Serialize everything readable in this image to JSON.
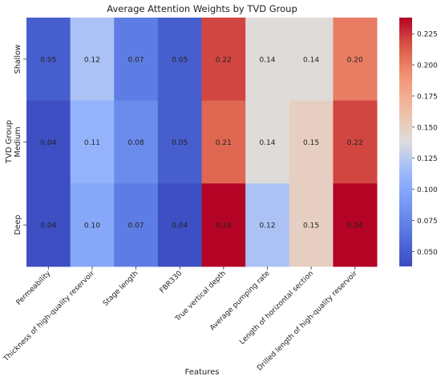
{
  "chart_data": {
    "type": "heatmap",
    "title": "Average Attention Weights by TVD Group",
    "xlabel": "Features",
    "ylabel": "TVD Group",
    "x_categories": [
      "Permeability",
      "Thickness of high-quality reservoir",
      "Stage length",
      "FBR330",
      "True vertical depth",
      "Average pumping rate",
      "Length of horizontal section",
      "Drilled length of high-quality reservoir"
    ],
    "y_categories": [
      "Shallow",
      "Medium",
      "Deep"
    ],
    "values": [
      [
        0.05,
        0.12,
        0.07,
        0.05,
        0.22,
        0.14,
        0.14,
        0.2
      ],
      [
        0.04,
        0.11,
        0.08,
        0.05,
        0.21,
        0.14,
        0.15,
        0.22
      ],
      [
        0.04,
        0.1,
        0.07,
        0.04,
        0.24,
        0.12,
        0.15,
        0.24
      ]
    ],
    "value_labels": [
      [
        "0.05",
        "0.12",
        "0.07",
        "0.05",
        "0.22",
        "0.14",
        "0.14",
        "0.20"
      ],
      [
        "0.04",
        "0.11",
        "0.08",
        "0.05",
        "0.21",
        "0.14",
        "0.15",
        "0.22"
      ],
      [
        "0.04",
        "0.10",
        "0.07",
        "0.04",
        "0.24",
        "0.12",
        "0.15",
        "0.24"
      ]
    ],
    "colormap": "coolwarm",
    "colorbar_range": [
      0.038,
      0.238
    ],
    "colorbar_ticks": [
      "0.050",
      "0.075",
      "0.100",
      "0.125",
      "0.150",
      "0.175",
      "0.200",
      "0.225"
    ],
    "colorbar_tick_values": [
      0.05,
      0.075,
      0.1,
      0.125,
      0.15,
      0.175,
      0.2,
      0.225
    ]
  }
}
